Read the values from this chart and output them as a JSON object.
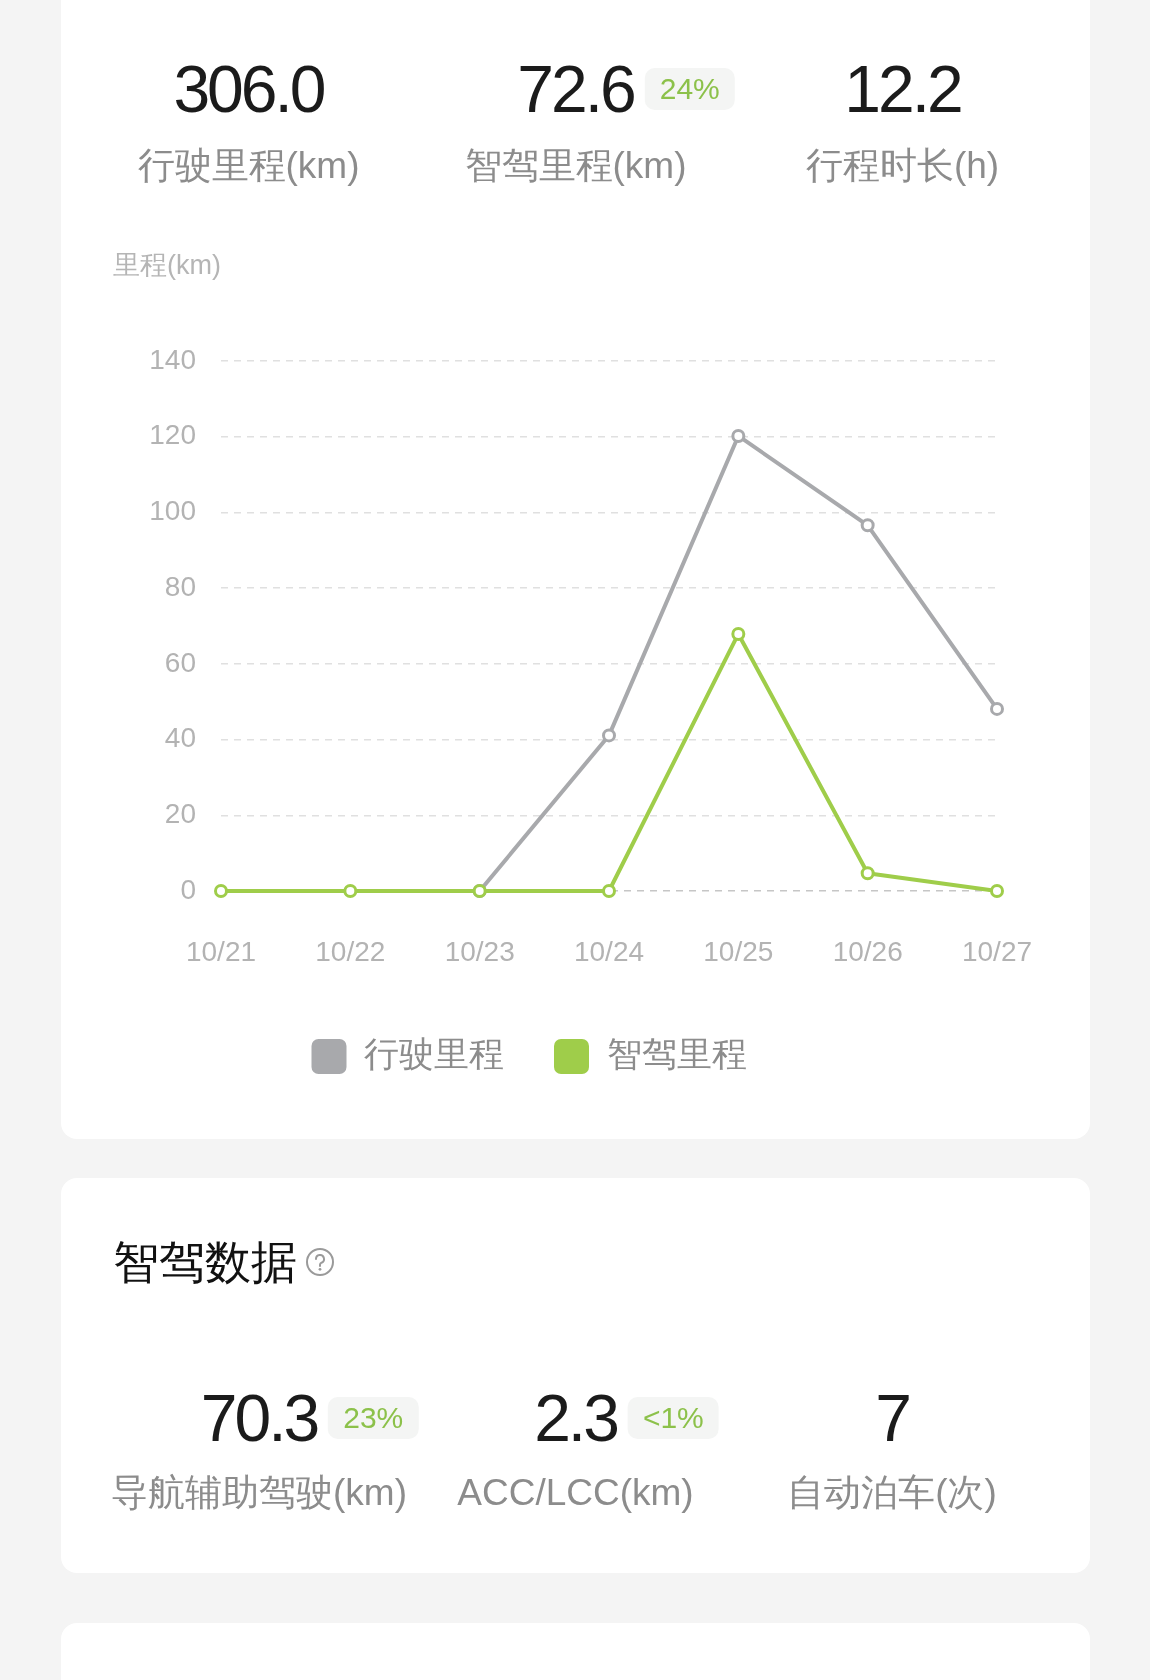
{
  "chart_data": [
    {
      "type": "other",
      "categories": [
        "行驶里程(km)",
        "智驾里程(km)",
        "行程时长(h)"
      ],
      "values": [
        306.0,
        72.6,
        12.2
      ],
      "value_labels": [
        "306.0",
        "72.6",
        "12.2"
      ],
      "annotations": [
        {
          "text": "24%",
          "x": "智驾里程(km)"
        }
      ]
    },
    {
      "type": "line",
      "ylabel": "里程(km)",
      "categories": [
        "10/21",
        "10/22",
        "10/23",
        "10/24",
        "10/25",
        "10/26",
        "10/27"
      ],
      "series": [
        {
          "name": "行驶里程",
          "color": "#a8a9ac",
          "values": [
            null,
            null,
            0,
            41.1,
            120.2,
            96.6,
            48.1
          ]
        },
        {
          "name": "智驾里程",
          "color": "#9fcd4a",
          "values": [
            0,
            0,
            0,
            0,
            67.9,
            4.7,
            0
          ]
        }
      ],
      "ylim": [
        0,
        140
      ],
      "yticks": [
        0,
        20,
        40,
        60,
        80,
        100,
        120,
        140
      ],
      "grid": "y",
      "legend": "bottom",
      "marker": "circle",
      "line_style": "solid"
    },
    {
      "type": "other",
      "title": "智驾数据",
      "categories": [
        "导航辅助驾驶(km)",
        "ACC/LCC(km)",
        "自动泊车(次)"
      ],
      "values": [
        70.3,
        2.3,
        7
      ],
      "value_labels": [
        "70.3",
        "2.3",
        "7"
      ],
      "annotations": [
        {
          "text": "23%",
          "x": "导航辅助驾驶(km)"
        },
        {
          "text": "<1%",
          "x": "ACC/LCC(km)"
        }
      ]
    }
  ]
}
